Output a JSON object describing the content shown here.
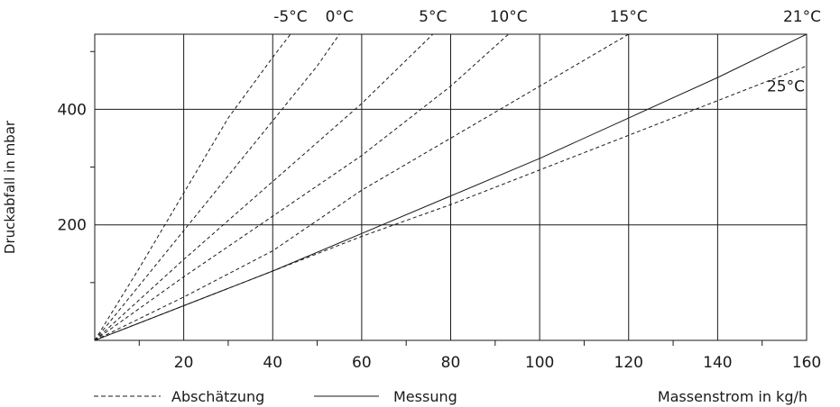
{
  "chart_data": {
    "type": "line",
    "title": "",
    "xlabel": "Massenstrom in kg/h",
    "ylabel": "Druckabfall in mbar",
    "xlim": [
      0,
      160
    ],
    "ylim": [
      0,
      530
    ],
    "x_ticks": [
      20,
      40,
      60,
      80,
      100,
      120,
      140,
      160
    ],
    "y_ticks": [
      200,
      400
    ],
    "x_minor_step": 10,
    "y_minor_step": 100,
    "grid": true,
    "legend": [
      {
        "label": "Abschätzung",
        "style": "dashed"
      },
      {
        "label": "Messung",
        "style": "solid"
      }
    ],
    "legend_placement": "bottom",
    "series": [
      {
        "name": "-5°C",
        "style": "dashed",
        "x": [
          0,
          10,
          20,
          30,
          40,
          44
        ],
        "y": [
          0,
          125,
          255,
          385,
          490,
          530
        ]
      },
      {
        "name": "0°C",
        "style": "dashed",
        "x": [
          0,
          10,
          20,
          30,
          40,
          50,
          55
        ],
        "y": [
          0,
          95,
          190,
          285,
          380,
          475,
          530
        ]
      },
      {
        "name": "5°C",
        "style": "dashed",
        "x": [
          0,
          20,
          40,
          60,
          76
        ],
        "y": [
          0,
          140,
          275,
          410,
          530
        ]
      },
      {
        "name": "10°C",
        "style": "dashed",
        "x": [
          0,
          20,
          40,
          60,
          80,
          93
        ],
        "y": [
          0,
          110,
          215,
          320,
          440,
          530
        ]
      },
      {
        "name": "15°C",
        "style": "dashed",
        "x": [
          0,
          20,
          40,
          60,
          80,
          100,
          120
        ],
        "y": [
          0,
          75,
          155,
          260,
          350,
          440,
          530
        ]
      },
      {
        "name": "21°C",
        "style": "solid",
        "x": [
          0,
          20,
          40,
          60,
          80,
          100,
          120,
          140,
          160
        ],
        "y": [
          0,
          60,
          120,
          185,
          250,
          315,
          385,
          455,
          530
        ]
      },
      {
        "name": "25°C",
        "style": "dashed",
        "x": [
          0,
          20,
          40,
          60,
          80,
          100,
          120,
          140,
          160
        ],
        "y": [
          0,
          60,
          120,
          180,
          235,
          295,
          355,
          415,
          475
        ]
      }
    ]
  }
}
